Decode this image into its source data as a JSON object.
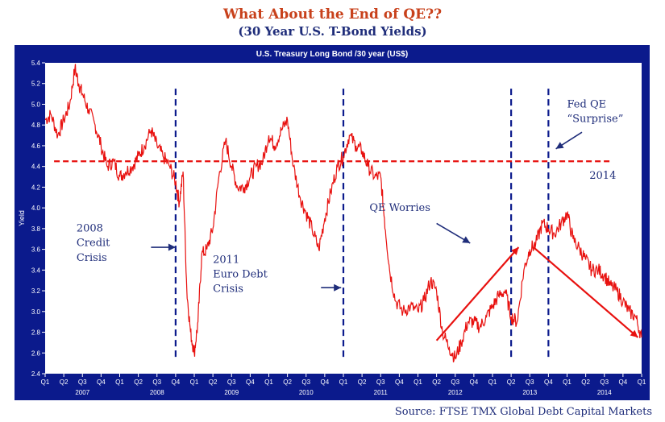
{
  "header": {
    "title": "What About the End of QE??",
    "subtitle": "(30 Year U.S. T-Bond Yields)"
  },
  "source": "Source: FTSE TMX Global Debt Capital Markets",
  "colors": {
    "frame": "#0b1a8c",
    "series": "#e8110f",
    "annotation": "#1f2d7a",
    "reference_line": "#e8110f"
  },
  "chart_data": {
    "type": "line",
    "title": "U.S. Treasury Long Bond /30 year (US$)",
    "ylabel": "Yield",
    "xlabel": "",
    "ylim": [
      2.4,
      5.4
    ],
    "yticks": [
      "2.4",
      "2.6",
      "2.8",
      "3.0",
      "3.2",
      "3.4",
      "3.6",
      "3.8",
      "4.0",
      "4.2",
      "4.4",
      "4.6",
      "4.8",
      "5.0",
      "5.2",
      "5.4"
    ],
    "xlim": [
      2007.0,
      2015.0
    ],
    "quarter_labels": [
      "Q1",
      "Q2",
      "Q3",
      "Q4",
      "Q1",
      "Q2",
      "Q3",
      "Q4",
      "Q1",
      "Q2",
      "Q3",
      "Q4",
      "Q1",
      "Q2",
      "Q3",
      "Q4",
      "Q1",
      "Q2",
      "Q3",
      "Q4",
      "Q1",
      "Q2",
      "Q3",
      "Q4",
      "Q1",
      "Q2",
      "Q3",
      "Q4",
      "Q1",
      "Q2",
      "Q3",
      "Q4",
      "Q1"
    ],
    "year_labels": [
      "2007",
      "2008",
      "2009",
      "2010",
      "2011",
      "2012",
      "2013",
      "2014"
    ],
    "grid": false,
    "series": [
      {
        "name": "",
        "x": [
          2007.0,
          2007.08,
          2007.17,
          2007.25,
          2007.33,
          2007.4,
          2007.45,
          2007.5,
          2007.58,
          2007.67,
          2007.75,
          2007.83,
          2007.92,
          2008.0,
          2008.08,
          2008.17,
          2008.25,
          2008.33,
          2008.42,
          2008.5,
          2008.58,
          2008.67,
          2008.75,
          2008.8,
          2008.85,
          2008.9,
          2008.95,
          2009.0,
          2009.05,
          2009.1,
          2009.17,
          2009.25,
          2009.33,
          2009.42,
          2009.5,
          2009.58,
          2009.67,
          2009.75,
          2009.83,
          2009.92,
          2010.0,
          2010.08,
          2010.17,
          2010.25,
          2010.33,
          2010.42,
          2010.5,
          2010.58,
          2010.67,
          2010.75,
          2010.83,
          2010.92,
          2011.0,
          2011.08,
          2011.17,
          2011.25,
          2011.33,
          2011.42,
          2011.5,
          2011.55,
          2011.62,
          2011.7,
          2011.8,
          2011.9,
          2012.0,
          2012.08,
          2012.17,
          2012.25,
          2012.33,
          2012.42,
          2012.5,
          2012.58,
          2012.67,
          2012.75,
          2012.83,
          2012.92,
          2013.0,
          2013.08,
          2013.17,
          2013.25,
          2013.33,
          2013.42,
          2013.5,
          2013.58,
          2013.67,
          2013.75,
          2013.83,
          2013.92,
          2014.0,
          2014.08,
          2014.17,
          2014.25,
          2014.33,
          2014.42,
          2014.5,
          2014.58,
          2014.67,
          2014.75,
          2014.83,
          2014.92,
          2015.0
        ],
        "values": [
          4.85,
          4.9,
          4.7,
          4.85,
          5.0,
          5.35,
          5.2,
          5.1,
          4.95,
          4.8,
          4.6,
          4.4,
          4.45,
          4.3,
          4.35,
          4.4,
          4.5,
          4.6,
          4.75,
          4.6,
          4.5,
          4.4,
          4.25,
          4.05,
          4.35,
          3.2,
          2.8,
          2.6,
          2.9,
          3.55,
          3.6,
          3.8,
          4.3,
          4.65,
          4.4,
          4.2,
          4.2,
          4.3,
          4.4,
          4.45,
          4.7,
          4.6,
          4.75,
          4.85,
          4.4,
          4.1,
          3.95,
          3.8,
          3.6,
          3.9,
          4.15,
          4.4,
          4.5,
          4.7,
          4.6,
          4.55,
          4.4,
          4.3,
          4.3,
          3.9,
          3.4,
          3.1,
          3.0,
          3.05,
          3.0,
          3.1,
          3.3,
          3.2,
          2.8,
          2.65,
          2.55,
          2.7,
          2.9,
          2.9,
          2.85,
          2.95,
          3.05,
          3.15,
          3.2,
          2.95,
          2.9,
          3.4,
          3.6,
          3.65,
          3.85,
          3.8,
          3.75,
          3.85,
          3.95,
          3.7,
          3.6,
          3.5,
          3.4,
          3.4,
          3.35,
          3.25,
          3.2,
          3.1,
          3.0,
          2.95,
          2.75
        ]
      }
    ],
    "reference_line": {
      "y": 4.45
    },
    "vertical_markers": [
      2008.75,
      2011.0,
      2013.25,
      2013.75
    ],
    "annotations": [
      {
        "text": "2008",
        "x": 2007.42,
        "y": 3.77
      },
      {
        "text": "Credit",
        "x": 2007.42,
        "y": 3.63
      },
      {
        "text": "Crisis",
        "x": 2007.42,
        "y": 3.49
      },
      {
        "text": "2011",
        "x": 2009.25,
        "y": 3.47
      },
      {
        "text": "Euro Debt",
        "x": 2009.25,
        "y": 3.33
      },
      {
        "text": "Crisis",
        "x": 2009.25,
        "y": 3.19
      },
      {
        "text": "QE Worries",
        "x": 2011.35,
        "y": 3.97
      },
      {
        "text": "Fed QE",
        "x": 2014.0,
        "y": 4.97
      },
      {
        "text": "“Surprise”",
        "x": 2014.0,
        "y": 4.83
      },
      {
        "text": "2014",
        "x": 2014.3,
        "y": 4.28
      }
    ],
    "arrows": [
      {
        "from": [
          2008.42,
          3.62
        ],
        "to": [
          2008.75,
          3.62
        ],
        "color": "annotation"
      },
      {
        "from": [
          2010.7,
          3.23
        ],
        "to": [
          2010.97,
          3.23
        ],
        "color": "annotation"
      },
      {
        "from": [
          2012.25,
          3.85
        ],
        "to": [
          2012.7,
          3.66
        ],
        "color": "annotation"
      },
      {
        "from": [
          2014.2,
          4.73
        ],
        "to": [
          2013.85,
          4.57
        ],
        "color": "annotation"
      },
      {
        "from": [
          2012.25,
          2.72
        ],
        "to": [
          2013.35,
          3.62
        ],
        "color": "series"
      },
      {
        "from": [
          2013.55,
          3.62
        ],
        "to": [
          2014.95,
          2.75
        ],
        "color": "series"
      }
    ]
  }
}
